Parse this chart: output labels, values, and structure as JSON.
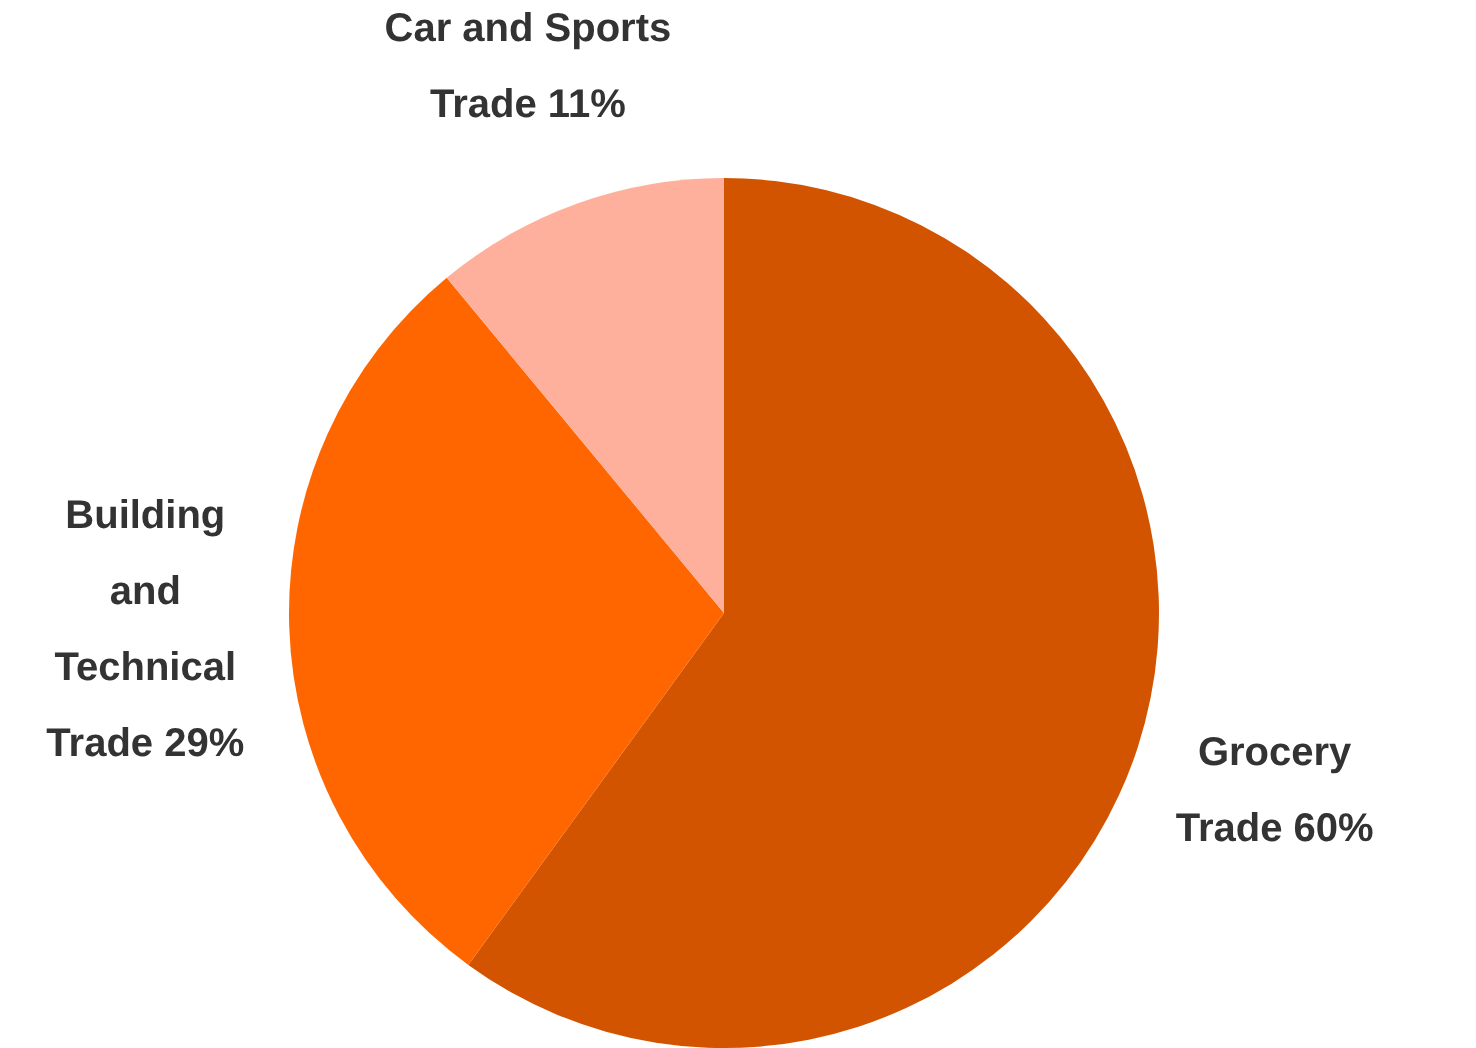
{
  "chart_data": {
    "type": "pie",
    "categories": [
      "Grocery Trade",
      "Building and Technical Trade",
      "Car and Sports Trade"
    ],
    "values": [
      60,
      29,
      11
    ],
    "value_labels": [
      "60%",
      "29%",
      "11%"
    ],
    "colors": [
      "#d35400",
      "#ff6600",
      "#ffb09c"
    ],
    "legend": false
  }
}
